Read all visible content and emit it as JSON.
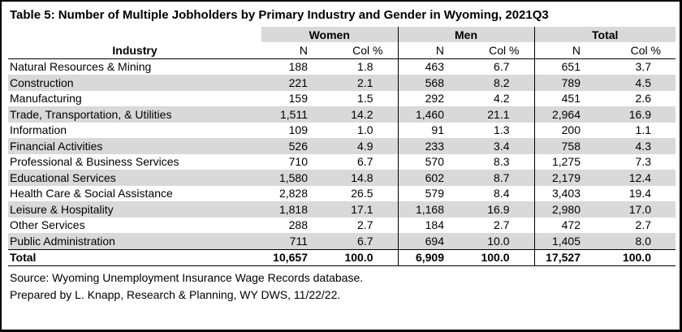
{
  "title": "Table 5: Number of Multiple Jobholders by Primary Industry and Gender in Wyoming, 2021Q3",
  "header": {
    "industry": "Industry",
    "groups": [
      "Women",
      "Men",
      "Total"
    ],
    "n_label": "N",
    "pct_label": "Col %"
  },
  "rows": [
    {
      "industry": "Natural Resources & Mining",
      "women_n": "188",
      "women_pct": "1.8",
      "men_n": "463",
      "men_pct": "6.7",
      "total_n": "651",
      "total_pct": "3.7"
    },
    {
      "industry": "Construction",
      "women_n": "221",
      "women_pct": "2.1",
      "men_n": "568",
      "men_pct": "8.2",
      "total_n": "789",
      "total_pct": "4.5"
    },
    {
      "industry": "Manufacturing",
      "women_n": "159",
      "women_pct": "1.5",
      "men_n": "292",
      "men_pct": "4.2",
      "total_n": "451",
      "total_pct": "2.6"
    },
    {
      "industry": "Trade, Transportation, & Utilities",
      "women_n": "1,511",
      "women_pct": "14.2",
      "men_n": "1,460",
      "men_pct": "21.1",
      "total_n": "2,964",
      "total_pct": "16.9"
    },
    {
      "industry": "Information",
      "women_n": "109",
      "women_pct": "1.0",
      "men_n": "91",
      "men_pct": "1.3",
      "total_n": "200",
      "total_pct": "1.1"
    },
    {
      "industry": "Financial Activities",
      "women_n": "526",
      "women_pct": "4.9",
      "men_n": "233",
      "men_pct": "3.4",
      "total_n": "758",
      "total_pct": "4.3"
    },
    {
      "industry": "Professional & Business Services",
      "women_n": "710",
      "women_pct": "6.7",
      "men_n": "570",
      "men_pct": "8.3",
      "total_n": "1,275",
      "total_pct": "7.3"
    },
    {
      "industry": "Educational Services",
      "women_n": "1,580",
      "women_pct": "14.8",
      "men_n": "602",
      "men_pct": "8.7",
      "total_n": "2,179",
      "total_pct": "12.4"
    },
    {
      "industry": "Health Care & Social Assistance",
      "women_n": "2,828",
      "women_pct": "26.5",
      "men_n": "579",
      "men_pct": "8.4",
      "total_n": "3,403",
      "total_pct": "19.4"
    },
    {
      "industry": "Leisure & Hospitality",
      "women_n": "1,818",
      "women_pct": "17.1",
      "men_n": "1,168",
      "men_pct": "16.9",
      "total_n": "2,980",
      "total_pct": "17.0"
    },
    {
      "industry": "Other Services",
      "women_n": "288",
      "women_pct": "2.7",
      "men_n": "184",
      "men_pct": "2.7",
      "total_n": "472",
      "total_pct": "2.7"
    },
    {
      "industry": "Public Administration",
      "women_n": "711",
      "women_pct": "6.7",
      "men_n": "694",
      "men_pct": "10.0",
      "total_n": "1,405",
      "total_pct": "8.0"
    }
  ],
  "total": {
    "industry": "Total",
    "women_n": "10,657",
    "women_pct": "100.0",
    "men_n": "6,909",
    "men_pct": "100.0",
    "total_n": "17,527",
    "total_pct": "100.0"
  },
  "source_line": "Source: Wyoming Unemployment Insurance Wage Records database.",
  "prepared_line": "Prepared by L. Knapp, Research & Planning, WY DWS, 11/22/22.",
  "colors": {
    "shade": "#d9d9d9",
    "border": "#000000"
  }
}
